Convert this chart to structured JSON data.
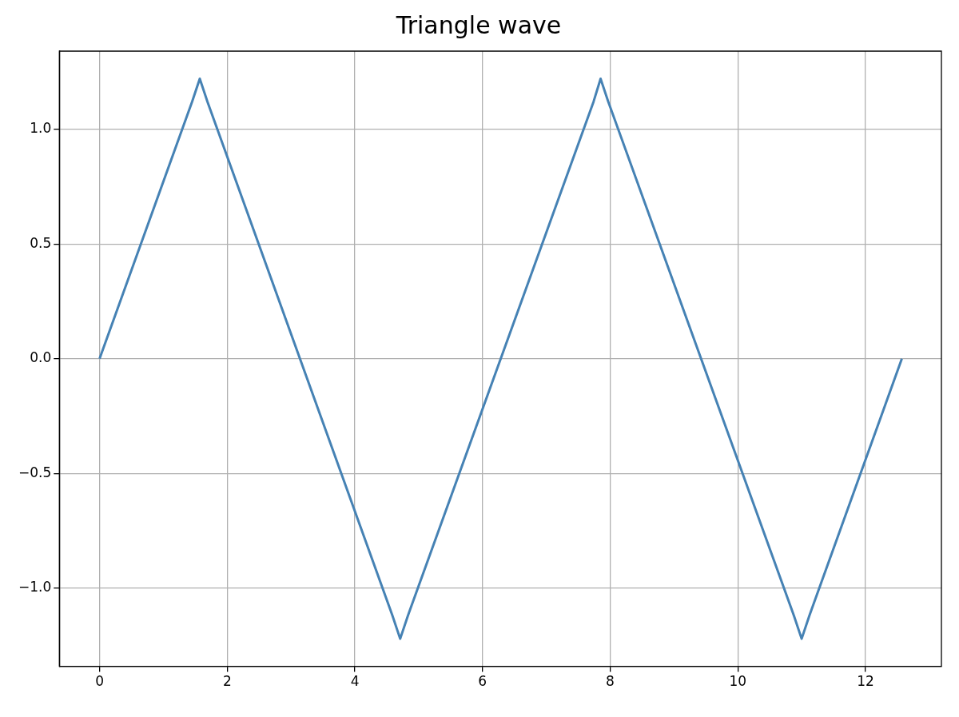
{
  "chart_data": {
    "type": "line",
    "title": "Triangle wave",
    "x": [
      0,
      1.45,
      1.57,
      1.69,
      4.59,
      4.71,
      4.83,
      7.74,
      7.85,
      7.97,
      10.88,
      11.0,
      11.12,
      12.57
    ],
    "series": [
      {
        "color": "#4682b4",
        "values": [
          0,
          1.12,
          1.22,
          1.12,
          -1.12,
          -1.22,
          -1.12,
          1.12,
          1.22,
          1.12,
          -1.12,
          -1.22,
          -1.12,
          0
        ]
      }
    ],
    "xlim": [
      -0.63,
      13.19
    ],
    "ylim": [
      -1.34,
      1.34
    ],
    "xticks": [
      0,
      2,
      4,
      6,
      8,
      10,
      12
    ],
    "yticks": [
      {
        "value": -1,
        "label": "−1.0"
      },
      {
        "value": -0.5,
        "label": "−0.5"
      },
      {
        "value": 0,
        "label": "0.0"
      },
      {
        "value": 0.5,
        "label": "0.5"
      },
      {
        "value": 1,
        "label": "1.0"
      }
    ],
    "grid": true,
    "marker": "none",
    "line_style": "solid"
  }
}
